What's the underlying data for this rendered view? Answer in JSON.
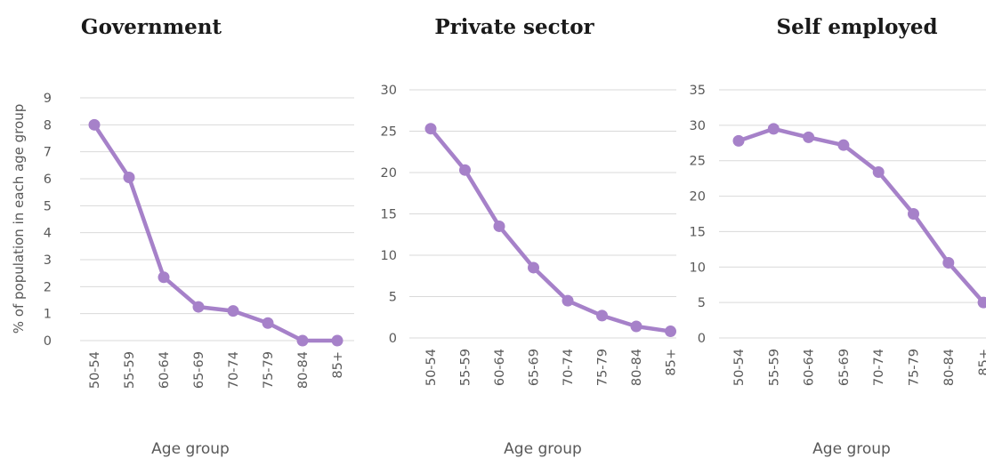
{
  "colors": {
    "series": "#a681c9",
    "grid": "#d9d9d9",
    "text": "#595959",
    "title": "#1a1a1a"
  },
  "shared_ylabel": "% of population in each age group",
  "chart_data": [
    {
      "type": "line",
      "title": "Government",
      "xlabel": "Age group",
      "ylabel": "% of population in each age group",
      "categories": [
        "50-54",
        "55-59",
        "60-64",
        "65-69",
        "70-74",
        "75-79",
        "80-84",
        "85+"
      ],
      "values": [
        8.0,
        6.05,
        2.35,
        1.25,
        1.1,
        0.65,
        0.0,
        0.0
      ],
      "ylim": [
        0,
        9
      ],
      "yticks": [
        "0",
        "1",
        "2",
        "3",
        "4",
        "5",
        "6",
        "7",
        "8",
        "9"
      ],
      "grid": true,
      "legend": "none"
    },
    {
      "type": "line",
      "title": "Private sector",
      "xlabel": "Age group",
      "ylabel": "",
      "categories": [
        "50-54",
        "55-59",
        "60-64",
        "65-69",
        "70-74",
        "75-79",
        "80-84",
        "85+"
      ],
      "values": [
        25.3,
        20.3,
        13.5,
        8.5,
        4.5,
        2.7,
        1.4,
        0.8
      ],
      "ylim": [
        0,
        30
      ],
      "yticks": [
        "0",
        "5",
        "10",
        "15",
        "20",
        "25",
        "30"
      ],
      "grid": true,
      "legend": "none"
    },
    {
      "type": "line",
      "title": "Self employed",
      "xlabel": "Age group",
      "ylabel": "",
      "categories": [
        "50-54",
        "55-59",
        "60-64",
        "65-69",
        "70-74",
        "75-79",
        "80-84",
        "85+"
      ],
      "values": [
        27.8,
        29.5,
        28.3,
        27.2,
        23.4,
        17.5,
        10.6,
        5.0
      ],
      "ylim": [
        0,
        35
      ],
      "yticks": [
        "0",
        "5",
        "10",
        "15",
        "20",
        "25",
        "30",
        "35"
      ],
      "grid": true,
      "legend": "none"
    }
  ]
}
